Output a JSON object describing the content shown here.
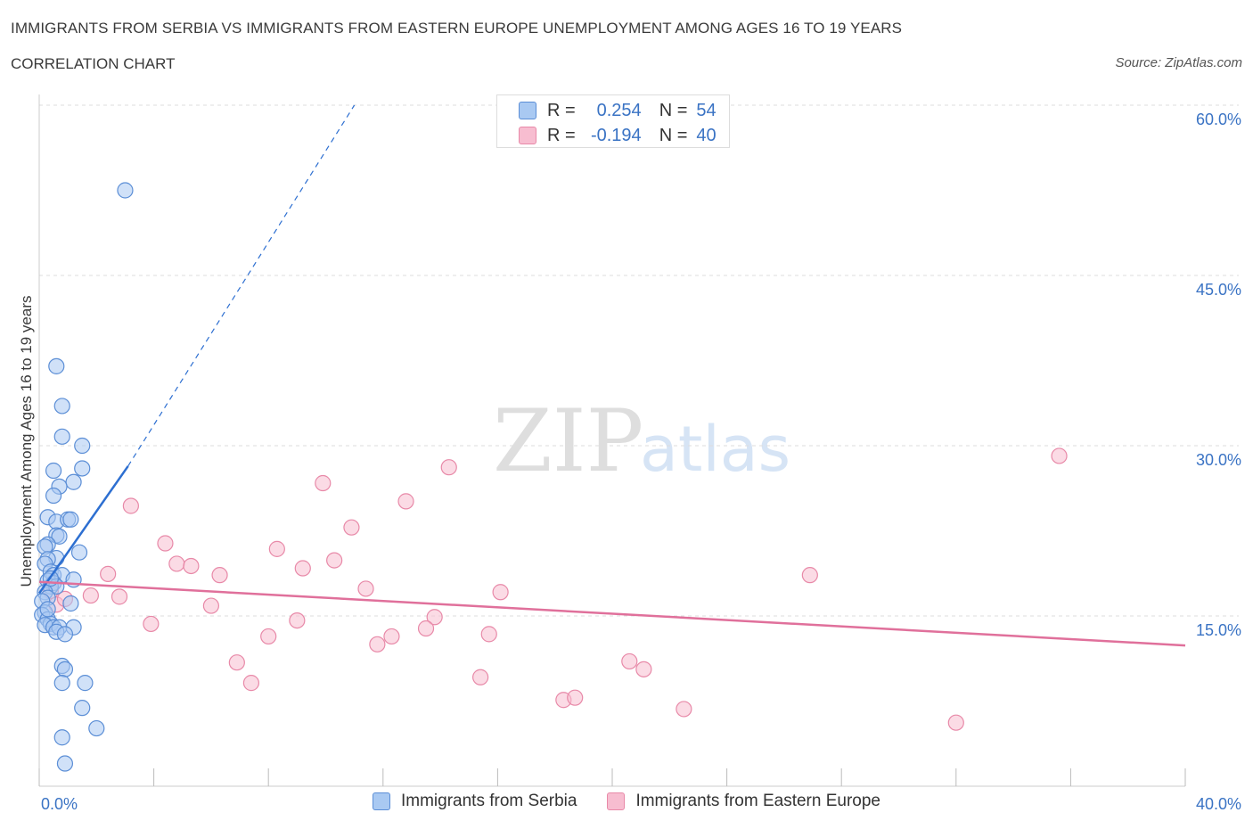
{
  "chart_data": {
    "type": "scatter",
    "title": "IMMIGRANTS FROM SERBIA VS IMMIGRANTS FROM EASTERN EUROPE UNEMPLOYMENT AMONG AGES 16 TO 19 YEARS",
    "subtitle": "CORRELATION CHART",
    "source": "Source: ZipAtlas.com",
    "watermark": "ZIPatlas",
    "xlabel": "",
    "ylabel": "Unemployment Among Ages 16 to 19 years",
    "xlim": [
      0,
      40
    ],
    "ylim": [
      0,
      60
    ],
    "x_tick_labels": {
      "min": "0.0%",
      "max": "40.0%"
    },
    "y_ticks": [
      {
        "value": 15,
        "label": "15.0%"
      },
      {
        "value": 30,
        "label": "30.0%"
      },
      {
        "value": 45,
        "label": "45.0%"
      },
      {
        "value": 60,
        "label": "60.0%"
      }
    ],
    "grid": true,
    "colors": {
      "serbia_fill": "#a9c9f2",
      "serbia_stroke": "#5b8ed6",
      "serbia_line": "#2d6fd1",
      "eeurope_fill": "#f7bdd0",
      "eeurope_stroke": "#e889a8",
      "eeurope_line": "#e0709b",
      "value_text": "#3a73c4",
      "grid": "#dddddd"
    },
    "legend": {
      "series1": {
        "r_label": "R =",
        "r_value": "0.254",
        "n_label": "N =",
        "n_value": "54"
      },
      "series2": {
        "r_label": "R =",
        "r_value": "-0.194",
        "n_label": "N =",
        "n_value": "40"
      }
    },
    "series": [
      {
        "name": "Immigrants from Serbia",
        "points": [
          [
            3.0,
            52.5
          ],
          [
            0.6,
            37.0
          ],
          [
            0.8,
            33.5
          ],
          [
            0.8,
            30.8
          ],
          [
            1.5,
            30.0
          ],
          [
            1.5,
            28.0
          ],
          [
            0.5,
            27.8
          ],
          [
            1.2,
            26.8
          ],
          [
            0.7,
            26.4
          ],
          [
            0.5,
            25.6
          ],
          [
            0.3,
            23.7
          ],
          [
            0.6,
            23.3
          ],
          [
            1.0,
            23.5
          ],
          [
            1.1,
            23.5
          ],
          [
            0.6,
            22.1
          ],
          [
            0.7,
            22.0
          ],
          [
            0.3,
            21.3
          ],
          [
            0.2,
            21.1
          ],
          [
            1.4,
            20.6
          ],
          [
            0.6,
            20.1
          ],
          [
            0.3,
            20.0
          ],
          [
            0.2,
            19.6
          ],
          [
            0.4,
            18.9
          ],
          [
            0.5,
            18.6
          ],
          [
            0.8,
            18.6
          ],
          [
            0.3,
            18.1
          ],
          [
            0.5,
            17.9
          ],
          [
            1.2,
            18.2
          ],
          [
            0.4,
            17.6
          ],
          [
            0.6,
            17.6
          ],
          [
            0.2,
            17.1
          ],
          [
            0.3,
            16.6
          ],
          [
            0.1,
            16.3
          ],
          [
            1.1,
            16.1
          ],
          [
            0.2,
            15.3
          ],
          [
            0.1,
            15.1
          ],
          [
            0.3,
            14.7
          ],
          [
            0.4,
            14.3
          ],
          [
            0.2,
            14.2
          ],
          [
            0.5,
            14.0
          ],
          [
            0.7,
            14.0
          ],
          [
            1.2,
            14.0
          ],
          [
            0.6,
            13.6
          ],
          [
            0.9,
            13.4
          ],
          [
            0.8,
            10.6
          ],
          [
            0.9,
            10.3
          ],
          [
            0.8,
            9.1
          ],
          [
            1.6,
            9.1
          ],
          [
            1.5,
            6.9
          ],
          [
            2.0,
            5.1
          ],
          [
            0.8,
            4.3
          ],
          [
            0.9,
            2.0
          ],
          [
            0.3,
            15.6
          ],
          [
            0.4,
            18.3
          ]
        ]
      },
      {
        "name": "Immigrants from Eastern Europe",
        "points": [
          [
            35.6,
            29.1
          ],
          [
            14.3,
            28.1
          ],
          [
            9.9,
            26.7
          ],
          [
            12.8,
            25.1
          ],
          [
            3.2,
            24.7
          ],
          [
            10.9,
            22.8
          ],
          [
            4.4,
            21.4
          ],
          [
            8.3,
            20.9
          ],
          [
            10.3,
            19.9
          ],
          [
            4.8,
            19.6
          ],
          [
            5.3,
            19.4
          ],
          [
            9.2,
            19.2
          ],
          [
            2.4,
            18.7
          ],
          [
            6.3,
            18.6
          ],
          [
            26.9,
            18.6
          ],
          [
            11.4,
            17.4
          ],
          [
            16.1,
            17.1
          ],
          [
            1.8,
            16.8
          ],
          [
            2.8,
            16.7
          ],
          [
            6.0,
            15.9
          ],
          [
            13.8,
            14.9
          ],
          [
            9.0,
            14.6
          ],
          [
            3.9,
            14.3
          ],
          [
            13.5,
            13.9
          ],
          [
            8.0,
            13.2
          ],
          [
            12.3,
            13.2
          ],
          [
            15.7,
            13.4
          ],
          [
            11.8,
            12.5
          ],
          [
            6.9,
            10.9
          ],
          [
            20.6,
            11.0
          ],
          [
            21.1,
            10.3
          ],
          [
            7.4,
            9.1
          ],
          [
            15.4,
            9.6
          ],
          [
            18.3,
            7.6
          ],
          [
            18.7,
            7.8
          ],
          [
            22.5,
            6.8
          ],
          [
            32.0,
            5.6
          ],
          [
            0.6,
            16.0
          ],
          [
            0.4,
            17.2
          ],
          [
            0.9,
            16.5
          ]
        ]
      }
    ],
    "trend_lines": [
      {
        "name": "Immigrants from Serbia",
        "solid": [
          [
            0.0,
            17.0
          ],
          [
            3.1,
            28.2
          ]
        ],
        "dashed": [
          [
            3.1,
            28.2
          ],
          [
            11.0,
            60.0
          ]
        ]
      },
      {
        "name": "Immigrants from Eastern Europe",
        "solid": [
          [
            0.0,
            18.0
          ],
          [
            40.0,
            12.4
          ]
        ]
      }
    ]
  }
}
